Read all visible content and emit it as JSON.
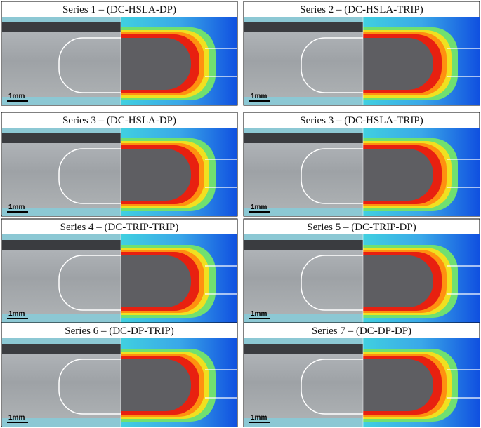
{
  "panels": [
    {
      "title": "Series 1 – (DC-HSLA-DP)",
      "scale_label": "1mm"
    },
    {
      "title": "Series 2 – (DC-HSLA-TRIP)",
      "scale_label": "1mm"
    },
    {
      "title": "Series 3 – (DC-HSLA-DP)",
      "scale_label": "1mm"
    },
    {
      "title": "Series 3 – (DC-HSLA-TRIP)",
      "scale_label": "1mm"
    },
    {
      "title": "Series 4 – (DC-TRIP-TRIP)",
      "scale_label": "1mm"
    },
    {
      "title": "Series 5 – (DC-TRIP-DP)",
      "scale_label": "1mm"
    },
    {
      "title": "Series 6 – (DC-DP-TRIP)",
      "scale_label": "1mm"
    },
    {
      "title": "Series 7 – (DC-DP-DP)",
      "scale_label": "1mm"
    }
  ]
}
